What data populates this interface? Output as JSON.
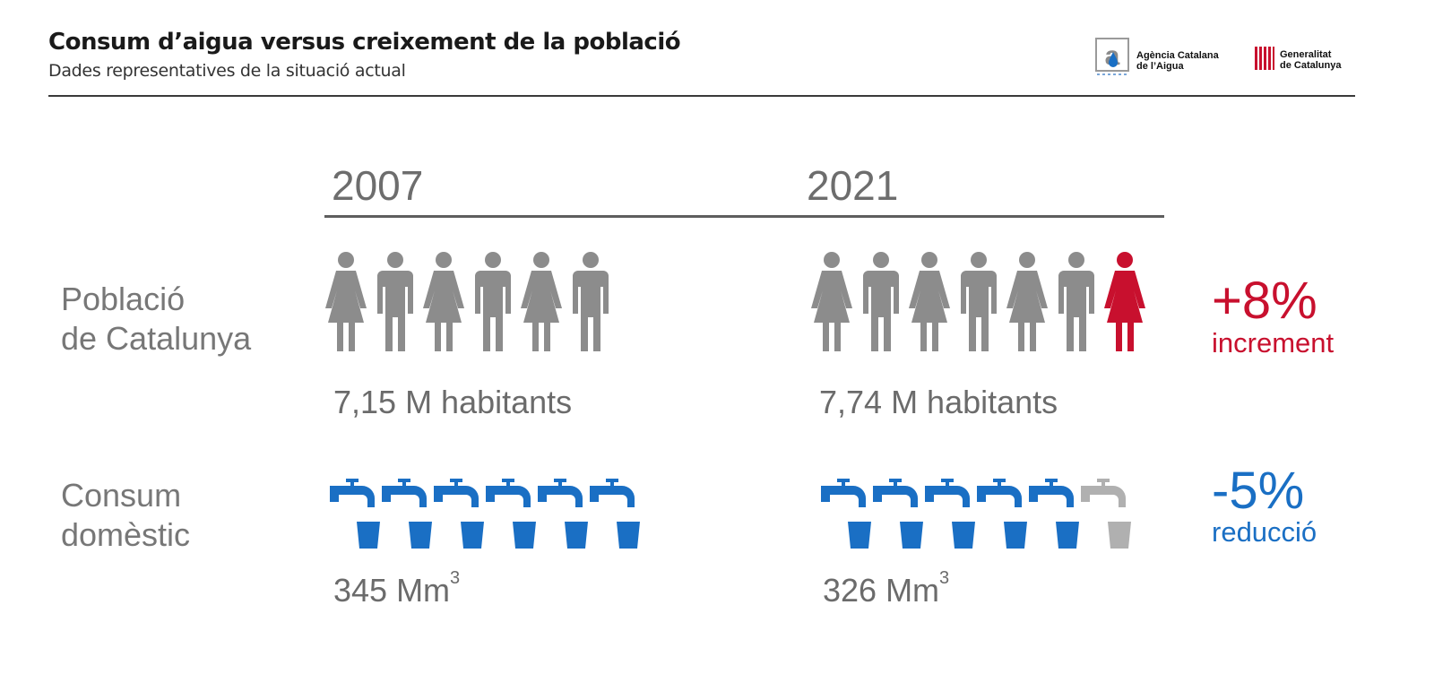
{
  "header": {
    "title": "Consum d’aigua versus creixement de la població",
    "subtitle": "Dades representatives de la situació actual",
    "logos": [
      {
        "name": "agencia-catalana-aigua-logo",
        "line1": "Agència Catalana",
        "line2": "de l’Aigua"
      },
      {
        "name": "generalitat-logo",
        "line1": "Generalitat",
        "line2": "de Catalunya"
      }
    ]
  },
  "colors": {
    "gray_icon": "#8c8c8c",
    "red": "#c8102e",
    "blue": "#1a6fc4",
    "light_gray_tap": "#b0b0b0"
  },
  "chart_data": {
    "type": "table",
    "columns": [
      "2007",
      "2021"
    ],
    "rows": [
      {
        "label_line1": "Població",
        "label_line2": "de Catalunya",
        "values": [
          "7,15 M habitants",
          "7,74 M habitants"
        ],
        "numeric": [
          7.15,
          7.74
        ],
        "unit": "M habitants",
        "icon_counts": [
          6,
          7
        ],
        "change": "+8%",
        "change_word": "increment"
      },
      {
        "label_line1": "Consum",
        "label_line2": "domèstic",
        "values": [
          "345 Mm",
          "326 Mm"
        ],
        "numeric": [
          345,
          326
        ],
        "unit_sup": "3",
        "icon_counts": [
          6,
          6
        ],
        "change": "-5%",
        "change_word": "reducció"
      }
    ]
  }
}
